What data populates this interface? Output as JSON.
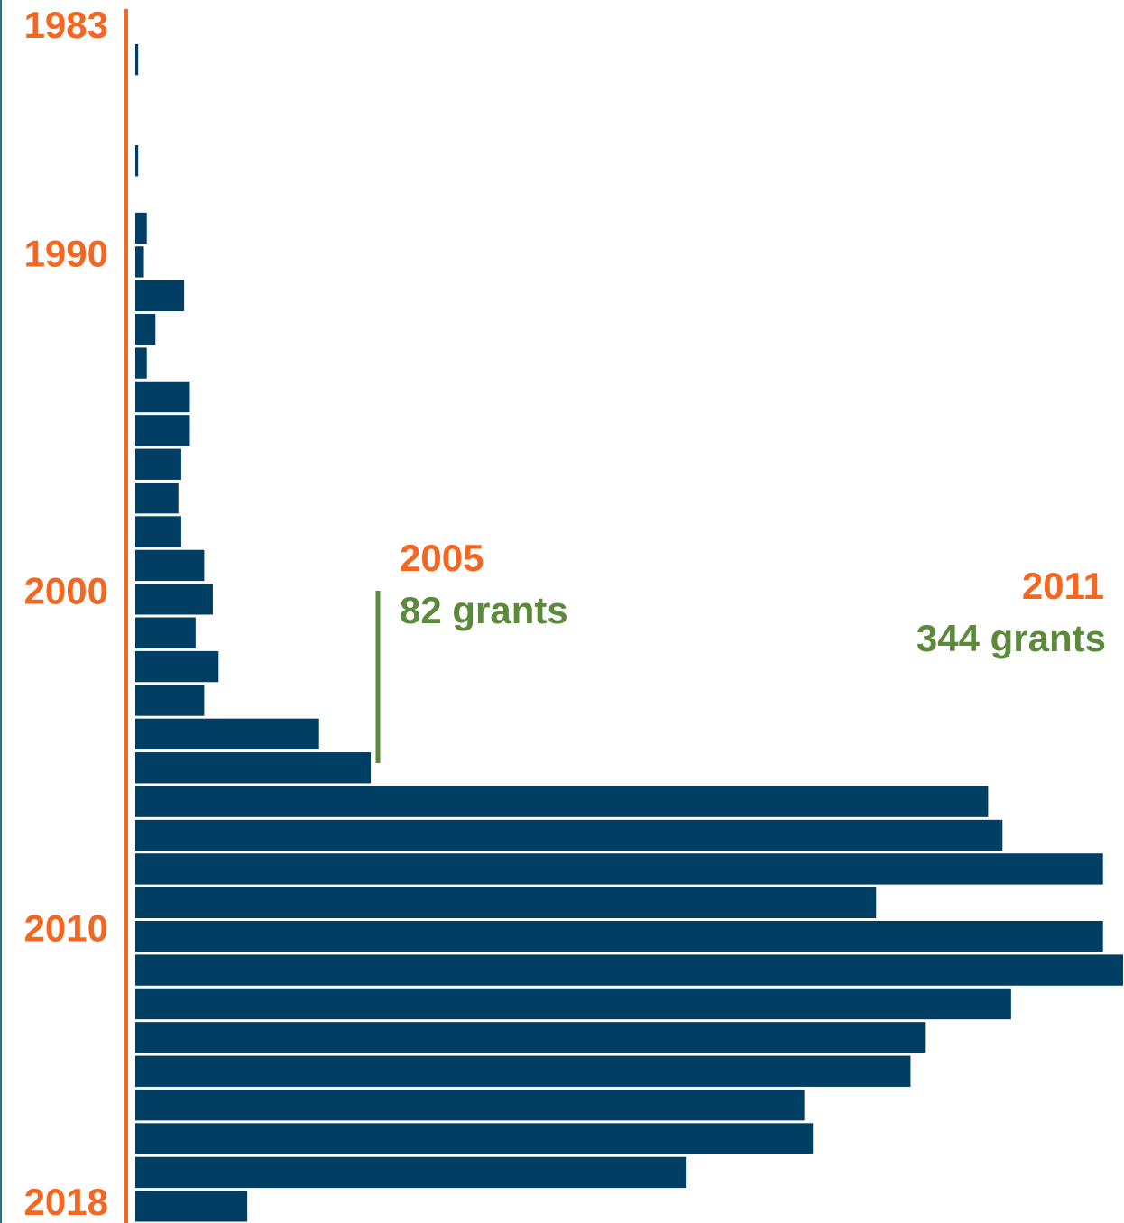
{
  "chart_data": {
    "type": "bar",
    "orientation": "horizontal",
    "categories": [
      "1983",
      null,
      null,
      null,
      null,
      null,
      null,
      "1990",
      null,
      null,
      null,
      null,
      null,
      null,
      null,
      null,
      null,
      "2000",
      null,
      null,
      null,
      null,
      null,
      null,
      null,
      null,
      null,
      "2010",
      null,
      null,
      null,
      null,
      null,
      null,
      null,
      "2018"
    ],
    "values": [
      0,
      1,
      0,
      0,
      1,
      0,
      4,
      3,
      17,
      7,
      4,
      19,
      19,
      16,
      15,
      16,
      24,
      27,
      21,
      29,
      24,
      64,
      82,
      297,
      302,
      337,
      258,
      337,
      344,
      305,
      275,
      270,
      233,
      236,
      192,
      39
    ],
    "color": "#003f63",
    "axis_color": "#f26722",
    "annotation_color": "#5a8a3a",
    "xlim": [
      0,
      344
    ],
    "annotations": [
      {
        "label": "2005",
        "text": "82 grants"
      },
      {
        "label": "2011",
        "text": "344 grants"
      }
    ]
  }
}
